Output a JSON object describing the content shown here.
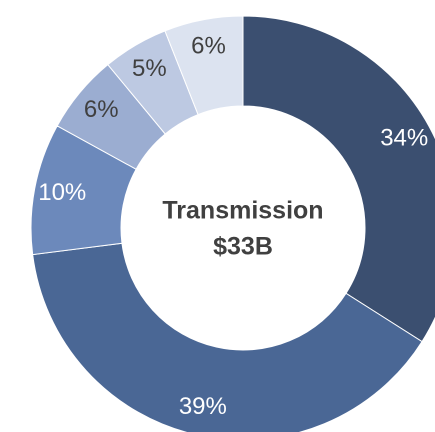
{
  "chart_data": {
    "type": "donut",
    "title": [
      "Transmission",
      "$33B"
    ],
    "values": [
      34,
      39,
      10,
      6,
      5,
      6
    ],
    "value_labels": [
      "34%",
      "39%",
      "10%",
      "6%",
      "5%",
      "6%"
    ],
    "colors": [
      "#3b4f70",
      "#4a6795",
      "#6c89bb",
      "#9badd1",
      "#bdc9e2",
      "#dce3f0"
    ],
    "label_colors": [
      "#ffffff",
      "#ffffff",
      "#ffffff",
      "#404040",
      "#404040",
      "#404040"
    ]
  }
}
